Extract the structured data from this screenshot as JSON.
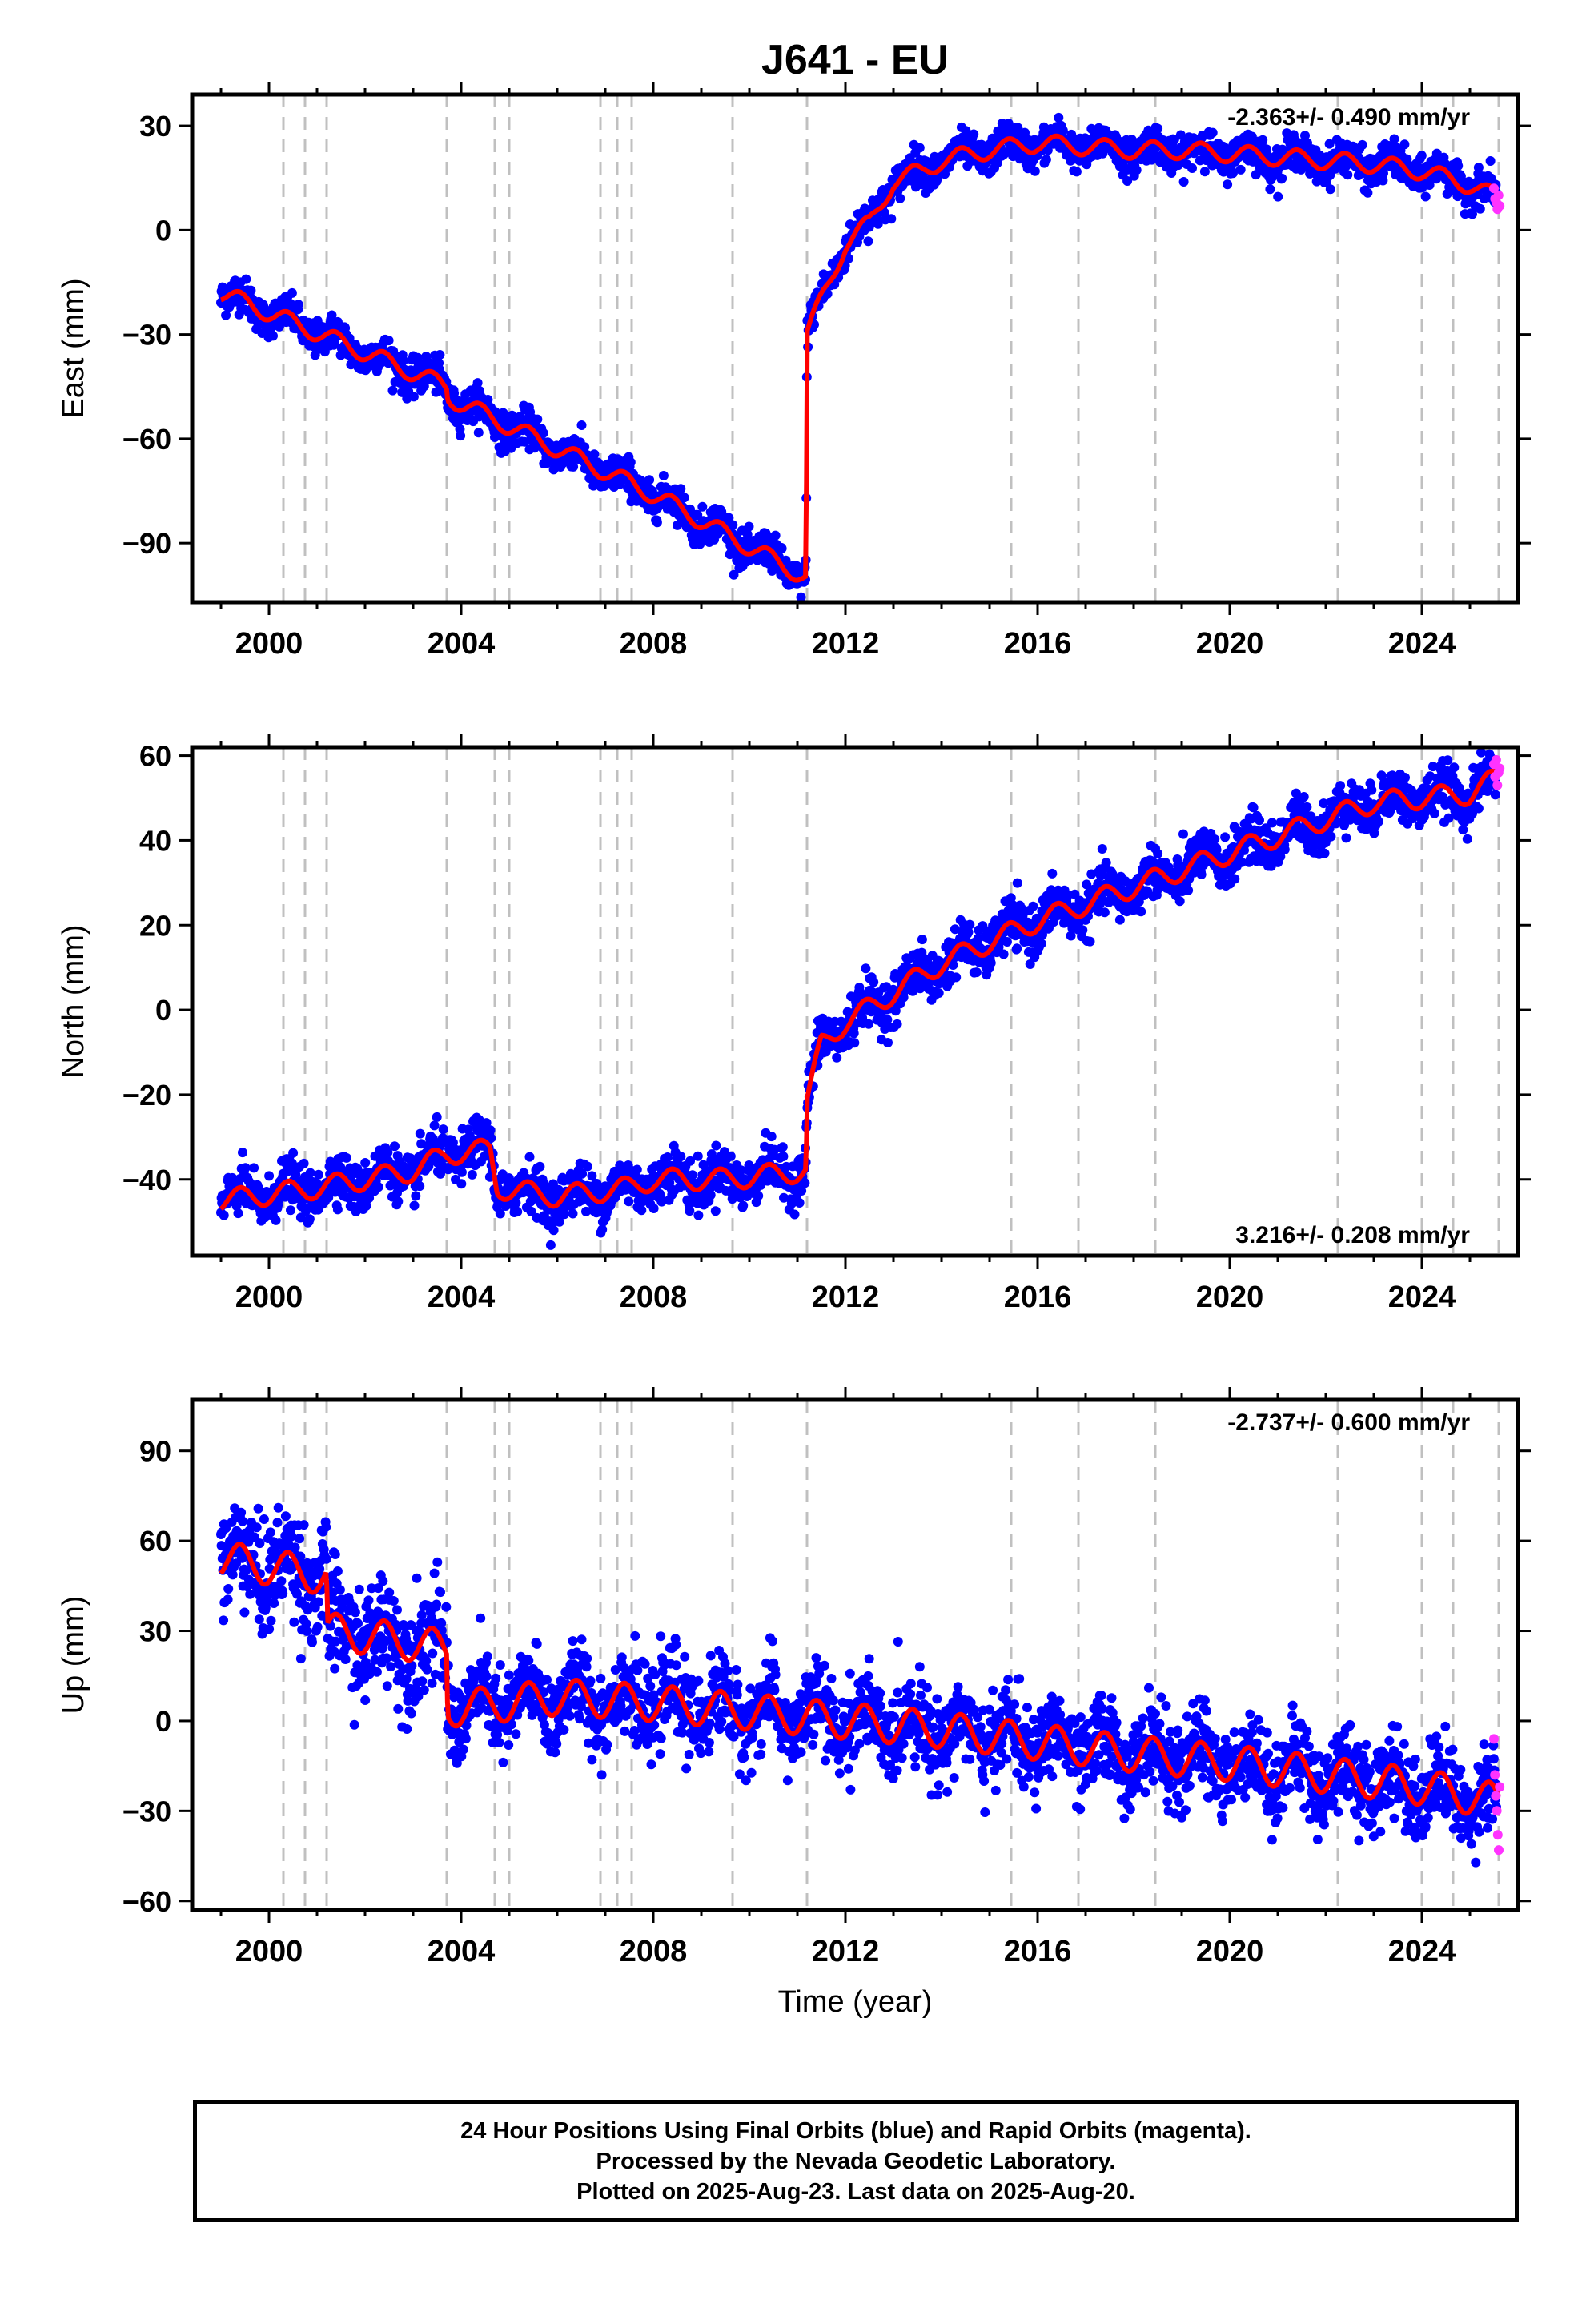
{
  "title": "J641 - EU",
  "xlabel": "Time (year)",
  "x_ticks": [
    "2000",
    "2004",
    "2008",
    "2012",
    "2016",
    "2020",
    "2024"
  ],
  "colors": {
    "final_orbits": "#0000ff",
    "rapid_orbits": "#ff33ff",
    "model": "#ff0000",
    "event_lines": "#c0c0c0"
  },
  "caption": {
    "line1": "24 Hour Positions Using Final Orbits (blue) and Rapid Orbits (magenta).",
    "line2": "Processed by the Nevada Geodetic Laboratory.",
    "line3": "Plotted on 2025-Aug-23. Last data on 2025-Aug-20."
  },
  "chart_data": [
    {
      "type": "scatter",
      "ylabel": "East (mm)",
      "rate_label": "-2.363+/- 0.490 mm/yr",
      "rate_position": "top-right",
      "xlim": [
        1998.4,
        2026.0
      ],
      "ylim": [
        -107,
        39
      ],
      "yticks": [
        30,
        0,
        -30,
        -60,
        -90
      ],
      "ytick_labels": [
        "30",
        "0",
        "−30",
        "−60",
        "−90"
      ],
      "grid": false,
      "event_lines": [
        2000.3,
        2000.75,
        2001.2,
        2003.7,
        2004.7,
        2005.0,
        2006.9,
        2007.25,
        2007.55,
        2009.65,
        2011.2,
        2015.45,
        2016.85,
        2018.45,
        2022.25,
        2024.0,
        2024.65,
        2025.6
      ],
      "trend": [
        [
          1999.0,
          -18
        ],
        [
          2003.7,
          -45
        ],
        [
          2003.72,
          -48
        ],
        [
          2008.0,
          -76
        ],
        [
          2011.18,
          -100
        ],
        [
          2011.2,
          -30
        ],
        [
          2011.5,
          -20
        ],
        [
          2012.0,
          -4
        ],
        [
          2012.5,
          2
        ],
        [
          2013.0,
          14
        ],
        [
          2013.6,
          17
        ],
        [
          2014.0,
          20
        ],
        [
          2015.0,
          23
        ],
        [
          2016.0,
          25
        ],
        [
          2017.0,
          24
        ],
        [
          2018.0,
          23
        ],
        [
          2019.0,
          23
        ],
        [
          2020.0,
          22
        ],
        [
          2021.0,
          21
        ],
        [
          2022.0,
          20
        ],
        [
          2023.0,
          19
        ],
        [
          2024.0,
          17
        ],
        [
          2025.0,
          13
        ],
        [
          2025.6,
          9
        ]
      ],
      "annual_amplitude": 2.5,
      "noise": 2.5,
      "span": [
        1999.0,
        2025.55
      ],
      "rapid": {
        "span": [
          2025.5,
          2025.62
        ],
        "values": [
          12,
          9,
          8,
          6,
          10,
          7
        ]
      }
    },
    {
      "type": "scatter",
      "ylabel": "North (mm)",
      "rate_label": "3.216+/- 0.208 mm/yr",
      "rate_position": "bottom-right",
      "xlim": [
        1998.4,
        2026.0
      ],
      "ylim": [
        -58,
        62
      ],
      "yticks": [
        60,
        40,
        20,
        0,
        -20,
        -40
      ],
      "ytick_labels": [
        "60",
        "40",
        "20",
        "0",
        "−20",
        "−40"
      ],
      "grid": false,
      "event_lines": [
        2000.3,
        2000.75,
        2001.2,
        2003.7,
        2004.7,
        2005.0,
        2006.9,
        2007.25,
        2007.55,
        2009.65,
        2011.2,
        2015.45,
        2016.85,
        2018.45,
        2022.25,
        2024.0,
        2024.65,
        2025.6
      ],
      "trend": [
        [
          1999.0,
          -45
        ],
        [
          2001.0,
          -42
        ],
        [
          2002.0,
          -40
        ],
        [
          2003.0,
          -38
        ],
        [
          2003.7,
          -34
        ],
        [
          2004.6,
          -33
        ],
        [
          2004.75,
          -42
        ],
        [
          2006.0,
          -44
        ],
        [
          2007.5,
          -42
        ],
        [
          2008.0,
          -40
        ],
        [
          2009.5,
          -40
        ],
        [
          2011.18,
          -38
        ],
        [
          2011.2,
          -22
        ],
        [
          2011.5,
          -8
        ],
        [
          2012.0,
          -3
        ],
        [
          2013.0,
          4
        ],
        [
          2014.0,
          11
        ],
        [
          2015.0,
          16
        ],
        [
          2016.0,
          21
        ],
        [
          2017.0,
          25
        ],
        [
          2018.0,
          29
        ],
        [
          2019.0,
          33
        ],
        [
          2020.0,
          37
        ],
        [
          2021.0,
          41
        ],
        [
          2022.0,
          45
        ],
        [
          2023.0,
          49
        ],
        [
          2024.0,
          50
        ],
        [
          2025.0,
          51
        ],
        [
          2025.6,
          55
        ]
      ],
      "annual_amplitude": 2.5,
      "noise": 2.8,
      "span": [
        1999.0,
        2025.55
      ],
      "rapid": {
        "span": [
          2025.5,
          2025.62
        ],
        "values": [
          58,
          55,
          59,
          53,
          56,
          57
        ]
      }
    },
    {
      "type": "scatter",
      "ylabel": "Up (mm)",
      "rate_label": "-2.737+/- 0.600 mm/yr",
      "rate_position": "top-right",
      "xlim": [
        1998.4,
        2026.0
      ],
      "ylim": [
        -63,
        107
      ],
      "yticks": [
        90,
        60,
        30,
        0,
        -30,
        -60
      ],
      "ytick_labels": [
        "90",
        "60",
        "30",
        "0",
        "−30",
        "−60"
      ],
      "grid": false,
      "event_lines": [
        2000.3,
        2000.75,
        2001.2,
        2003.7,
        2004.7,
        2005.0,
        2006.9,
        2007.25,
        2007.55,
        2009.65,
        2011.2,
        2015.45,
        2016.85,
        2018.45,
        2022.25,
        2024.0,
        2024.65,
        2025.6
      ],
      "trend": [
        [
          1999.0,
          54
        ],
        [
          2001.2,
          48
        ],
        [
          2001.22,
          30
        ],
        [
          2003.0,
          26
        ],
        [
          2003.7,
          24
        ],
        [
          2003.72,
          4
        ],
        [
          2005.0,
          6
        ],
        [
          2006.0,
          8
        ],
        [
          2008.0,
          6
        ],
        [
          2010.0,
          3
        ],
        [
          2012.0,
          0
        ],
        [
          2014.0,
          -3
        ],
        [
          2016.0,
          -7
        ],
        [
          2018.0,
          -11
        ],
        [
          2020.0,
          -14
        ],
        [
          2022.0,
          -18
        ],
        [
          2024.0,
          -22
        ],
        [
          2025.6,
          -27
        ]
      ],
      "annual_amplitude": 6,
      "noise": 7,
      "span": [
        1999.0,
        2025.55
      ],
      "rapid": {
        "span": [
          2025.5,
          2025.62
        ],
        "values": [
          -6,
          -18,
          -25,
          -30,
          -38,
          -43,
          -22
        ]
      }
    }
  ]
}
